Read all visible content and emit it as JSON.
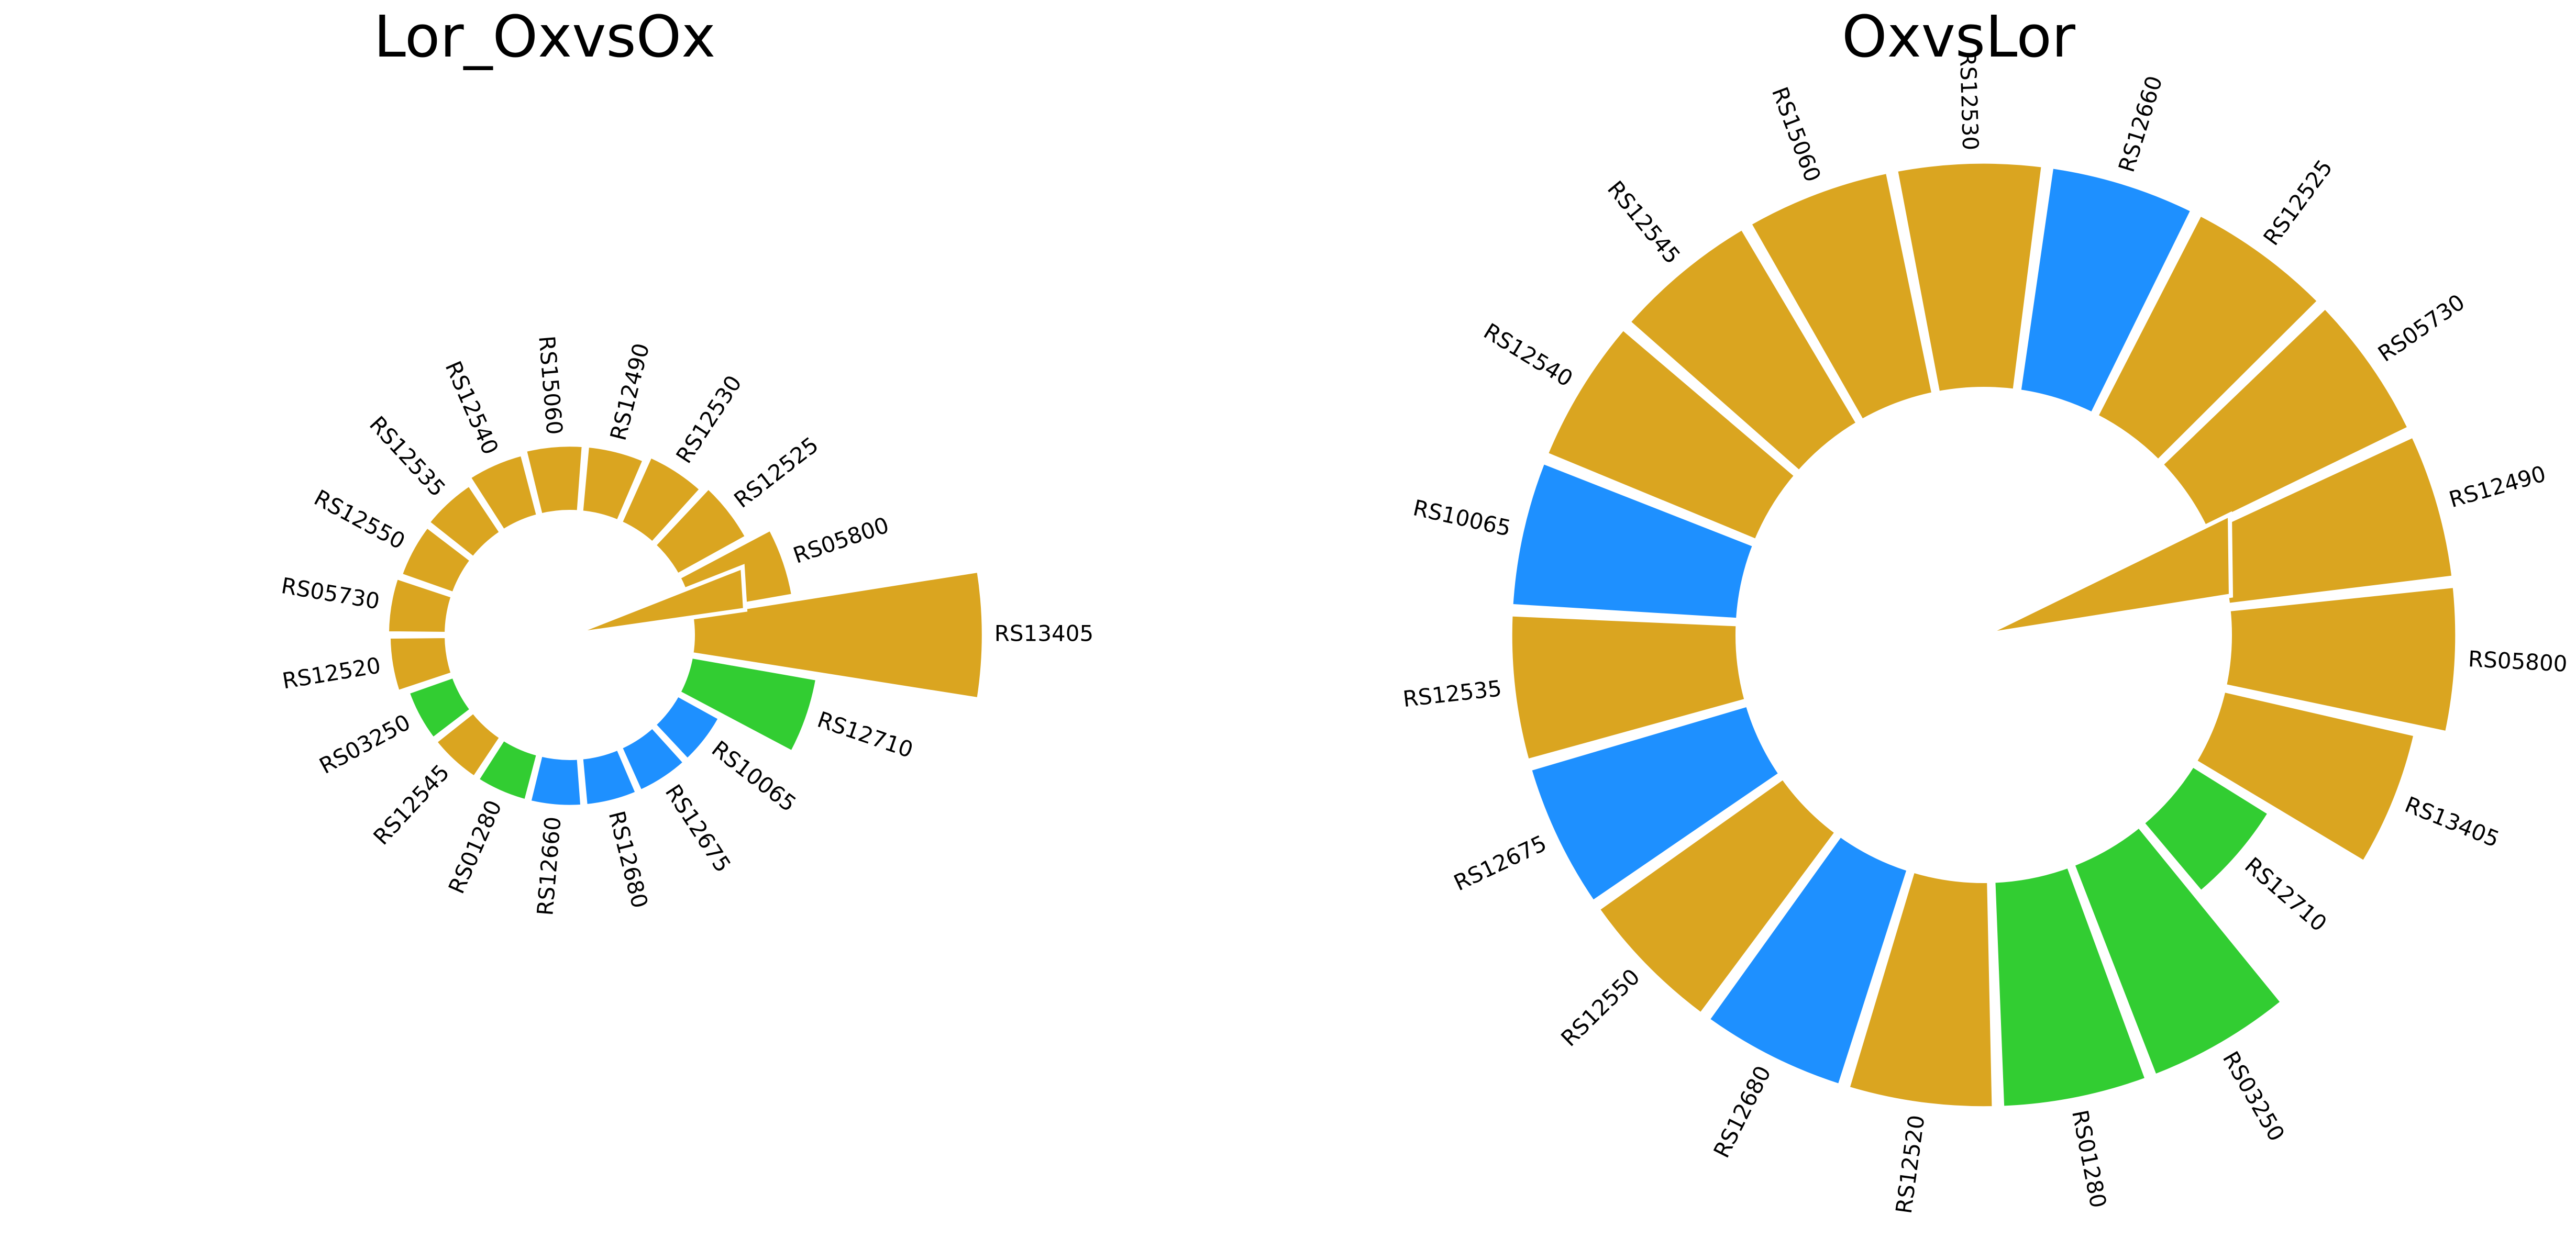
{
  "chart_data": [
    {
      "type": "bar",
      "subtype": "circular-barplot",
      "title": "Lor_OxvsOx",
      "ylim": [
        0,
        10
      ],
      "grid": false,
      "legend": "none",
      "categories": [
        "RS13405",
        "RS05800",
        "RS12525",
        "RS12530",
        "RS12490",
        "RS15060",
        "RS12540",
        "RS12535",
        "RS12550",
        "RS05730",
        "RS12520",
        "RS03250",
        "RS12545",
        "RS01280",
        "RS12660",
        "RS12680",
        "RS12675",
        "RS10065",
        "RS12710"
      ],
      "values": [
        9.5,
        3.4,
        2.6,
        2.4,
        2.2,
        2.2,
        2.1,
        1.9,
        1.85,
        1.95,
        1.9,
        1.6,
        1.6,
        1.6,
        1.6,
        1.6,
        1.6,
        1.6,
        4.2
      ],
      "colors": [
        "goldenrod",
        "goldenrod",
        "goldenrod",
        "goldenrod",
        "goldenrod",
        "goldenrod",
        "goldenrod",
        "goldenrod",
        "goldenrod",
        "goldenrod",
        "goldenrod",
        "limegreen",
        "goldenrod",
        "limegreen",
        "dodgerblue",
        "dodgerblue",
        "dodgerblue",
        "dodgerblue",
        "limegreen"
      ]
    },
    {
      "type": "bar",
      "subtype": "circular-barplot",
      "title": "OxvsLor",
      "ylim": [
        0,
        10
      ],
      "grid": false,
      "legend": "none",
      "categories": [
        "RS05800",
        "RS12490",
        "RS05730",
        "RS12525",
        "RS12660",
        "RS12530",
        "RS15060",
        "RS12545",
        "RS12540",
        "RS10065",
        "RS12535",
        "RS12675",
        "RS12550",
        "RS12680",
        "RS12520",
        "RS01280",
        "RS03250",
        "RS12710",
        "RS13405"
      ],
      "values": [
        4.5,
        4.5,
        4.5,
        4.5,
        4.5,
        4.5,
        4.5,
        4.5,
        4.5,
        4.5,
        4.5,
        4.5,
        4.5,
        4.5,
        4.5,
        4.5,
        4.5,
        1.8,
        3.9
      ],
      "colors": [
        "goldenrod",
        "goldenrod",
        "goldenrod",
        "goldenrod",
        "dodgerblue",
        "goldenrod",
        "goldenrod",
        "goldenrod",
        "goldenrod",
        "dodgerblue",
        "goldenrod",
        "dodgerblue",
        "goldenrod",
        "dodgerblue",
        "goldenrod",
        "limegreen",
        "limegreen",
        "limegreen",
        "goldenrod"
      ]
    }
  ],
  "palette": {
    "goldenrod": "#DAA520",
    "limegreen": "#32CD32",
    "dodgerblue": "#1E90FF"
  }
}
